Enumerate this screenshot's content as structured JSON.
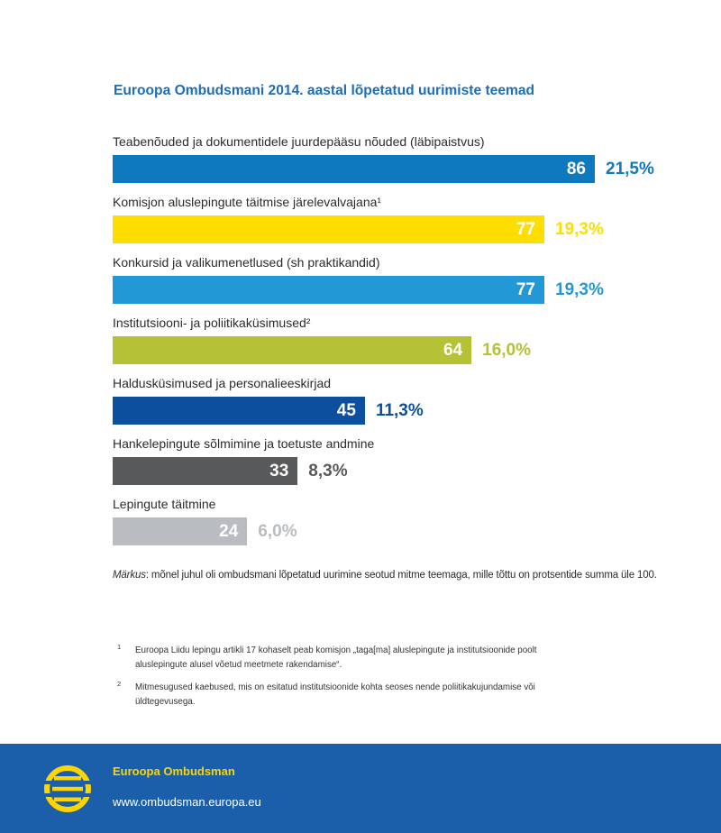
{
  "chart_data": {
    "type": "bar",
    "orientation": "horizontal",
    "title": "Euroopa Ombudsmani 2014. aastal lõpetatud uurimiste teemad",
    "categories": [
      "Teabenõuded ja dokumentidele juurdepääsu nõuded (läbipaistvus)",
      "Komisjon aluslepingute täitmise järelevalvajana¹",
      "Konkursid ja valikumenetlused (sh praktikandid)",
      "Institutsiooni- ja poliitikaküsimused²",
      "Haldusküsimused ja personalieeskirjad",
      "Hankelepingute sõlmimine ja toetuste andmine",
      "Lepingute täitmine"
    ],
    "values": [
      86,
      77,
      77,
      64,
      45,
      33,
      24
    ],
    "percent_labels": [
      "21,5%",
      "19,3%",
      "19,3%",
      "16,0%",
      "11,3%",
      "8,3%",
      "6,0%"
    ],
    "colors": [
      "#0f79bf",
      "#ffdd00",
      "#2398d6",
      "#b5c236",
      "#0c4f9f",
      "#58595b",
      "#b9bdc1"
    ],
    "grid": false,
    "legend": "none"
  },
  "note": {
    "label": "Märkus",
    "text": ": mõnel juhul oli ombudsmani lõpetatud uurimine seotud mitme teemaga, mille tõttu on protsentide summa üle 100."
  },
  "footnotes": [
    {
      "mark": "1",
      "lines": [
        "Euroopa Liidu lepingu artikli 17 kohaselt peab komisjon „taga[ma] aluslepingute ja institutsioonide poolt",
        "aluslepingute alusel võetud meetmete rakendamise“."
      ]
    },
    {
      "mark": "2",
      "lines": [
        "Mitmesugused kaebused, mis on esitatud institutsioonide kohta seoses nende poliitikakujundamise või",
        "üldtegevusega."
      ]
    }
  ],
  "footer": {
    "org_name": "Euroopa Ombudsman",
    "url": "www.ombudsman.europa.eu",
    "logo_icon": "european-ombudsman-logo-icon",
    "background": "#1b5faa",
    "accent": "#ffd500"
  }
}
